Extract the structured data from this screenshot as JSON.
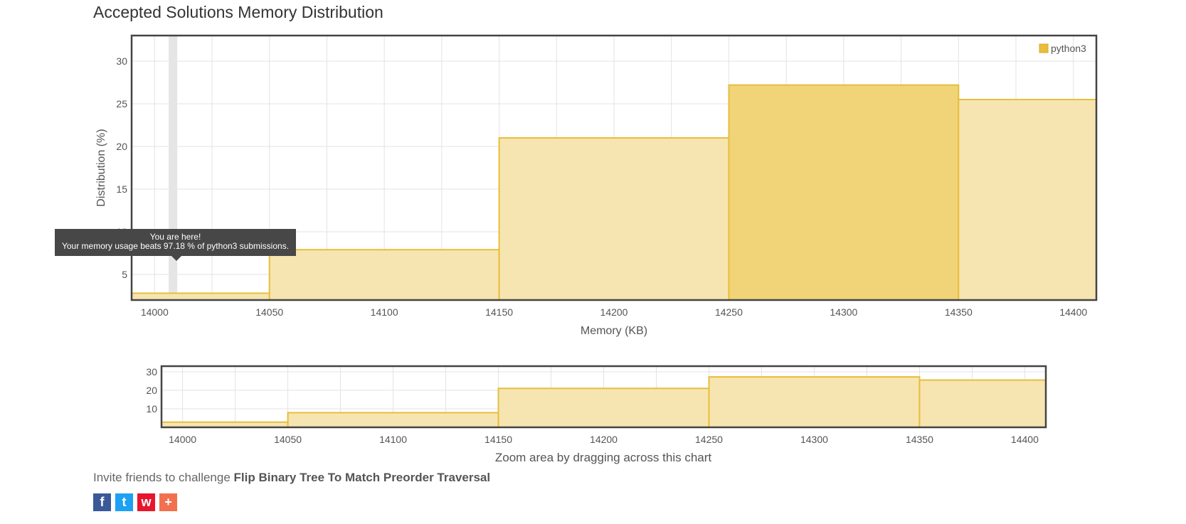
{
  "page": {
    "title": "Accepted Solutions Memory Distribution"
  },
  "tooltip": {
    "line1": "You are here!",
    "line2": "Your memory usage beats 97.18 % of python3 submissions."
  },
  "navigator": {
    "caption": "Zoom area by dragging across this chart"
  },
  "invite": {
    "prefix": "Invite friends to challenge ",
    "problem": "Flip Binary Tree To Match Preorder Traversal"
  },
  "share_buttons": [
    {
      "name": "facebook",
      "glyph": "f"
    },
    {
      "name": "twitter",
      "glyph": "t"
    },
    {
      "name": "weibo",
      "glyph": "w"
    },
    {
      "name": "more",
      "glyph": "+"
    }
  ],
  "colors": {
    "bar_fill": "#f6e5b0",
    "bar_fill_highlight": "#f0d477",
    "bar_stroke": "#e8be3c",
    "marker_band": "#e5e5e5"
  },
  "chart_data": [
    {
      "type": "bar",
      "title": "Accepted Solutions Memory Distribution",
      "xlabel": "Memory (KB)",
      "ylabel": "Distribution (%)",
      "legend": [
        "python3"
      ],
      "legend_position": "top-right",
      "xlim": [
        13990,
        14410
      ],
      "ylim": [
        2,
        33
      ],
      "xticks": [
        14000,
        14050,
        14100,
        14150,
        14200,
        14250,
        14300,
        14350,
        14400
      ],
      "yticks": [
        5,
        10,
        15,
        20,
        25,
        30
      ],
      "marker_x": 14008,
      "highlight_index": 3,
      "series": [
        {
          "name": "python3",
          "bins": [
            {
              "x0": 13950,
              "x1": 14050,
              "value": 2.8
            },
            {
              "x0": 14050,
              "x1": 14150,
              "value": 7.9
            },
            {
              "x0": 14150,
              "x1": 14250,
              "value": 21.0
            },
            {
              "x0": 14250,
              "x1": 14350,
              "value": 27.2
            },
            {
              "x0": 14350,
              "x1": 14450,
              "value": 25.5
            }
          ]
        }
      ]
    },
    {
      "type": "bar",
      "title": "navigator",
      "xlim": [
        13990,
        14410
      ],
      "ylim": [
        0,
        33
      ],
      "xticks": [
        14000,
        14050,
        14100,
        14150,
        14200,
        14250,
        14300,
        14350,
        14400
      ],
      "yticks": [
        10,
        20,
        30
      ],
      "series": [
        {
          "name": "python3",
          "bins": [
            {
              "x0": 13950,
              "x1": 14050,
              "value": 2.8
            },
            {
              "x0": 14050,
              "x1": 14150,
              "value": 7.9
            },
            {
              "x0": 14150,
              "x1": 14250,
              "value": 21.0
            },
            {
              "x0": 14250,
              "x1": 14350,
              "value": 27.2
            },
            {
              "x0": 14350,
              "x1": 14450,
              "value": 25.5
            }
          ]
        }
      ]
    }
  ]
}
